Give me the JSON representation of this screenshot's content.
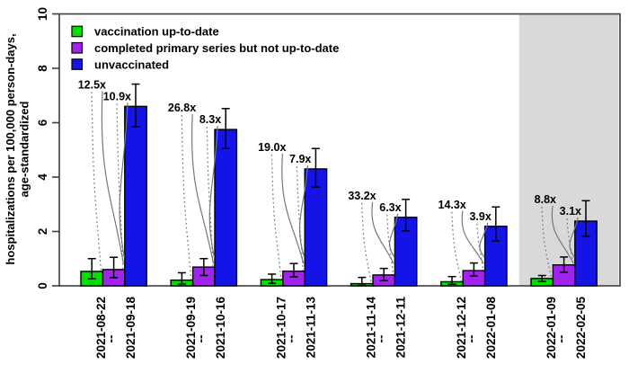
{
  "chart_data": {
    "type": "bar",
    "title": "",
    "ylabel_lines": [
      "hospitalizations per 100,000 person-days,",
      "age-standardized"
    ],
    "ylim": [
      0,
      10
    ],
    "yticks": [
      "0",
      "2",
      "4",
      "6",
      "8",
      "10"
    ],
    "grid": false,
    "legend_position": "top-left",
    "x_separator": "--",
    "shaded_last_group": true,
    "shade_color": "#d9d9d9",
    "categories": [
      {
        "start": "2021-08-22",
        "end": "2021-09-18"
      },
      {
        "start": "2021-09-19",
        "end": "2021-10-16"
      },
      {
        "start": "2021-10-17",
        "end": "2021-11-13"
      },
      {
        "start": "2021-11-14",
        "end": "2021-12-11"
      },
      {
        "start": "2021-12-12",
        "end": "2022-01-08"
      },
      {
        "start": "2022-01-09",
        "end": "2022-02-05"
      }
    ],
    "series": [
      {
        "name": "vaccination up-to-date",
        "color": "#00e000",
        "values": [
          0.53,
          0.21,
          0.23,
          0.08,
          0.15,
          0.27
        ],
        "ci_low": [
          0.26,
          0.07,
          0.09,
          0.02,
          0.06,
          0.16
        ],
        "ci_high": [
          1.0,
          0.48,
          0.43,
          0.31,
          0.34,
          0.38
        ]
      },
      {
        "name": "completed primary series but not up-to-date",
        "color": "#a024ec",
        "values": [
          0.6,
          0.69,
          0.54,
          0.4,
          0.56,
          0.77
        ],
        "ci_low": [
          0.3,
          0.38,
          0.33,
          0.19,
          0.36,
          0.5
        ],
        "ci_high": [
          1.05,
          1.0,
          0.82,
          0.64,
          0.84,
          1.06
        ]
      },
      {
        "name": "unvaccinated",
        "color": "#1414e6",
        "values": [
          6.6,
          5.75,
          4.3,
          2.52,
          2.19,
          2.38
        ],
        "ci_low": [
          5.85,
          5.05,
          3.63,
          2.02,
          1.65,
          1.82
        ],
        "ci_high": [
          7.42,
          6.52,
          5.05,
          3.18,
          2.9,
          3.13
        ]
      }
    ],
    "annotations": [
      {
        "vs_up_to_date": "12.5x",
        "vs_primary_series": "10.9x"
      },
      {
        "vs_up_to_date": "26.8x",
        "vs_primary_series": "8.3x"
      },
      {
        "vs_up_to_date": "19.0x",
        "vs_primary_series": "7.9x"
      },
      {
        "vs_up_to_date": "33.2x",
        "vs_primary_series": "6.3x"
      },
      {
        "vs_up_to_date": "14.3x",
        "vs_primary_series": "3.9x"
      },
      {
        "vs_up_to_date": "8.8x",
        "vs_primary_series": "3.1x"
      }
    ]
  }
}
